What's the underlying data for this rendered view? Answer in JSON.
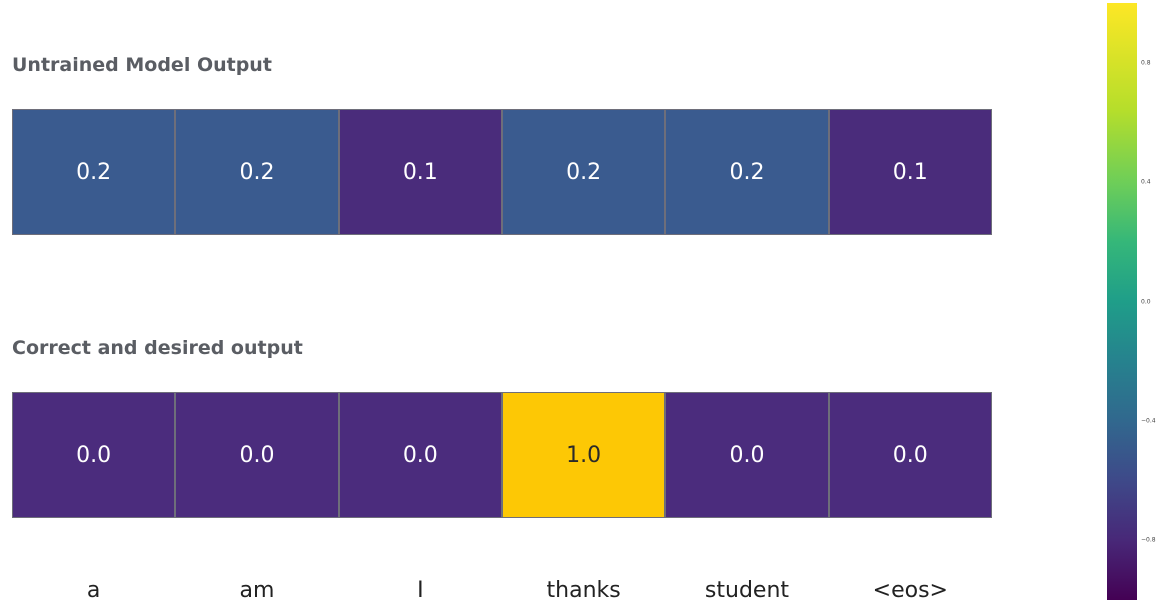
{
  "chart_data": [
    {
      "type": "heatmap",
      "title": "Untrained Model Output",
      "categories": [
        "a",
        "am",
        "I",
        "thanks",
        "student",
        "<eos>"
      ],
      "values": [
        0.2,
        0.2,
        0.1,
        0.2,
        0.2,
        0.1
      ],
      "value_labels": [
        "0.2",
        "0.2",
        "0.1",
        "0.2",
        "0.2",
        "0.1"
      ],
      "colors": [
        "#3a5b8f",
        "#3a5b8f",
        "#4a2c7b",
        "#3a5b8f",
        "#3a5b8f",
        "#4a2c7b"
      ]
    },
    {
      "type": "heatmap",
      "title": "Correct and desired output",
      "categories": [
        "a",
        "am",
        "I",
        "thanks",
        "student",
        "<eos>"
      ],
      "values": [
        0.0,
        0.0,
        0.0,
        1.0,
        0.0,
        0.0
      ],
      "value_labels": [
        "0.0",
        "0.0",
        "0.0",
        "1.0",
        "0.0",
        "0.0"
      ],
      "colors": [
        "#4b2c7d",
        "#4b2c7d",
        "#4b2c7d",
        "#fdc805",
        "#4b2c7d",
        "#4b2c7d"
      ]
    }
  ],
  "token_labels": [
    "a",
    "am",
    "I",
    "thanks",
    "student",
    "<eos>"
  ],
  "colorbar": {
    "colormap": "viridis",
    "ticks": [
      {
        "value": 0.8,
        "label": "0.8"
      },
      {
        "value": 0.4,
        "label": "0.4"
      },
      {
        "value": 0.0,
        "label": "0.0"
      },
      {
        "value": -0.4,
        "label": "−0.4"
      },
      {
        "value": -0.8,
        "label": "−0.8"
      }
    ]
  }
}
